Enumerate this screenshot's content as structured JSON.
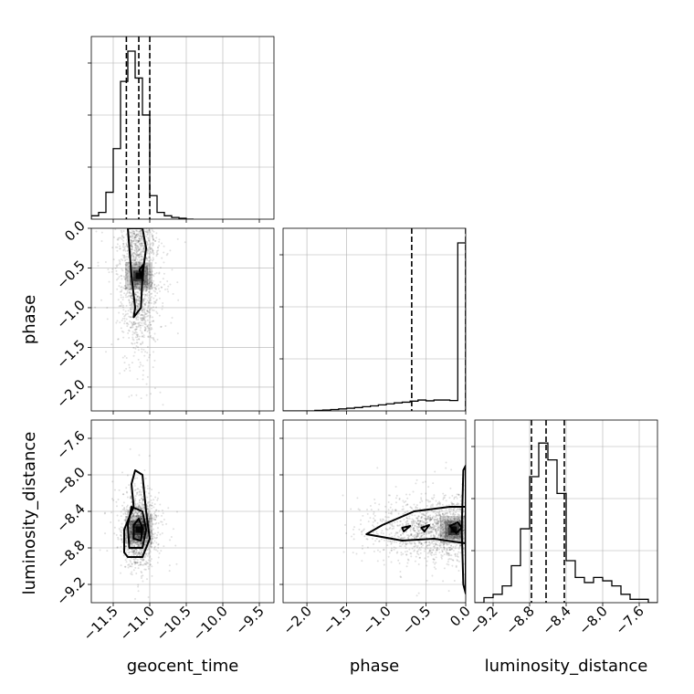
{
  "chart_data": {
    "type": "corner",
    "parameters": [
      "geocent_time",
      "phase",
      "luminosity_distance"
    ],
    "ranges": {
      "geocent_time": [
        -11.8,
        -9.3
      ],
      "phase": [
        -2.3,
        0.0
      ],
      "luminosity_distance": [
        -9.4,
        -7.4
      ]
    },
    "ticks": {
      "geocent_time": [
        -11.5,
        -11.0,
        -10.5,
        -10.0,
        -9.5
      ],
      "phase": [
        -2.0,
        -1.5,
        -1.0,
        -0.5,
        0.0
      ],
      "luminosity_distance": [
        -9.2,
        -8.8,
        -8.4,
        -8.0,
        -7.6
      ]
    },
    "tick_labels": {
      "geocent_time": [
        "−11.5",
        "−11.0",
        "−10.5",
        "−10.0",
        "−9.5"
      ],
      "phase": [
        "−2.0",
        "−1.5",
        "−1.0",
        "−0.5",
        "0.0"
      ],
      "luminosity_distance": [
        "−9.2",
        "−8.8",
        "−8.4",
        "−8.0",
        "−7.6"
      ]
    },
    "axis_labels": {
      "geocent_time": "geocent_time",
      "phase": "phase",
      "luminosity_distance": "luminosity_distance"
    },
    "quantiles": {
      "geocent_time": [
        -11.32,
        -11.15,
        -11.0
      ],
      "phase": [
        -0.68,
        0.0
      ],
      "luminosity_distance": [
        -8.78,
        -8.62,
        -8.42
      ]
    },
    "histograms": {
      "geocent_time": {
        "edges": [
          -11.8,
          -11.7,
          -11.6,
          -11.5,
          -11.4,
          -11.3,
          -11.2,
          -11.1,
          -11.0,
          -10.9,
          -10.8,
          -10.7,
          -10.6,
          -10.5,
          -10.4
        ],
        "counts": [
          0.02,
          0.04,
          0.16,
          0.42,
          0.82,
          1.0,
          0.84,
          0.62,
          0.14,
          0.04,
          0.02,
          0.01,
          0.005,
          0.0
        ]
      },
      "phase": {
        "edges": [
          -2.3,
          -2.2,
          -2.1,
          -2.0,
          -1.9,
          -1.8,
          -1.7,
          -1.6,
          -1.5,
          -1.4,
          -1.3,
          -1.2,
          -1.1,
          -1.0,
          -0.9,
          -0.8,
          -0.7,
          -0.6,
          -0.5,
          -0.4,
          -0.3,
          -0.2,
          -0.1,
          0.0
        ],
        "counts": [
          0.0,
          0.0,
          0.0,
          0.0,
          0.003,
          0.005,
          0.008,
          0.012,
          0.016,
          0.02,
          0.025,
          0.03,
          0.036,
          0.042,
          0.048,
          0.052,
          0.058,
          0.065,
          0.06,
          0.065,
          0.065,
          0.062,
          1.0
        ]
      },
      "luminosity_distance": {
        "edges": [
          -9.4,
          -9.3,
          -9.2,
          -9.1,
          -9.0,
          -8.9,
          -8.8,
          -8.7,
          -8.6,
          -8.5,
          -8.4,
          -8.3,
          -8.2,
          -8.1,
          -8.0,
          -7.9,
          -7.8,
          -7.7,
          -7.6,
          -7.5,
          -7.4
        ],
        "counts": [
          0.0,
          0.03,
          0.05,
          0.1,
          0.22,
          0.44,
          0.75,
          0.95,
          0.85,
          0.65,
          0.25,
          0.15,
          0.12,
          0.15,
          0.13,
          0.1,
          0.05,
          0.02,
          0.02,
          0.0
        ]
      }
    },
    "joint": [
      {
        "x": "geocent_time",
        "y": "phase",
        "center": [
          -11.15,
          -0.6
        ],
        "spread": [
          0.12,
          0.45
        ],
        "contours": [
          [
            [
              -11.22,
              -1.12
            ],
            [
              -11.12,
              -1.0
            ],
            [
              -11.1,
              -0.6
            ],
            [
              -11.05,
              -0.25
            ],
            [
              -11.1,
              0.0
            ],
            [
              -11.3,
              0.0
            ],
            [
              -11.25,
              -0.6
            ],
            [
              -11.2,
              -1.0
            ]
          ],
          [
            [
              -11.12,
              -0.6
            ],
            [
              -11.08,
              -0.45
            ],
            [
              -11.14,
              -0.52
            ]
          ]
        ]
      },
      {
        "x": "geocent_time",
        "y": "luminosity_distance",
        "center": [
          -11.15,
          -8.6
        ],
        "spread": [
          0.1,
          0.18
        ],
        "contours": [
          [
            [
              -11.3,
              -8.9
            ],
            [
              -11.1,
              -8.9
            ],
            [
              -11.0,
              -8.7
            ],
            [
              -11.05,
              -8.4
            ],
            [
              -11.1,
              -8.0
            ],
            [
              -11.2,
              -7.95
            ],
            [
              -11.25,
              -8.1
            ],
            [
              -11.22,
              -8.35
            ],
            [
              -11.35,
              -8.6
            ],
            [
              -11.35,
              -8.85
            ]
          ],
          [
            [
              -11.28,
              -8.8
            ],
            [
              -11.1,
              -8.8
            ],
            [
              -11.05,
              -8.6
            ],
            [
              -11.1,
              -8.4
            ],
            [
              -11.25,
              -8.35
            ],
            [
              -11.3,
              -8.55
            ]
          ],
          [
            [
              -11.22,
              -8.7
            ],
            [
              -11.12,
              -8.72
            ],
            [
              -11.1,
              -8.58
            ],
            [
              -11.15,
              -8.48
            ],
            [
              -11.22,
              -8.55
            ]
          ]
        ]
      },
      {
        "x": "phase",
        "y": "luminosity_distance",
        "center": [
          -0.15,
          -8.6
        ],
        "spread": [
          0.35,
          0.15
        ],
        "contours": [
          [
            [
              -1.05,
              -8.55
            ],
            [
              -0.65,
              -8.4
            ],
            [
              -0.2,
              -8.35
            ],
            [
              0.0,
              -8.35
            ],
            [
              0.0,
              -8.75
            ],
            [
              -0.4,
              -8.7
            ],
            [
              -0.8,
              -8.72
            ],
            [
              -1.25,
              -8.65
            ]
          ],
          [
            [
              -0.8,
              -8.58
            ],
            [
              -0.7,
              -8.56
            ],
            [
              -0.78,
              -8.62
            ]
          ],
          [
            [
              -0.56,
              -8.58
            ],
            [
              -0.46,
              -8.55
            ],
            [
              -0.52,
              -8.62
            ]
          ],
          [
            [
              -0.2,
              -8.56
            ],
            [
              -0.1,
              -8.52
            ],
            [
              -0.05,
              -8.58
            ],
            [
              -0.12,
              -8.64
            ]
          ],
          [
            [
              -0.03,
              -7.95
            ],
            [
              0.0,
              -7.9
            ],
            [
              0.0,
              -9.3
            ],
            [
              -0.03,
              -9.2
            ],
            [
              -0.05,
              -8.6
            ]
          ]
        ]
      }
    ]
  }
}
